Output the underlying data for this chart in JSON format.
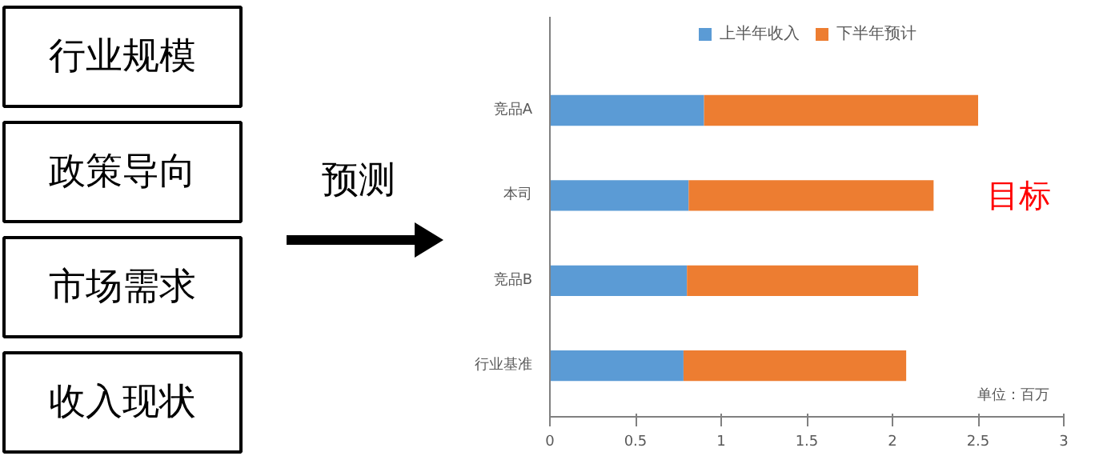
{
  "chart_data": [
    {
      "type": "other",
      "annotations": [
        "行业规模",
        "政策导向",
        "市场需求",
        "收入现状",
        "预测"
      ]
    },
    {
      "type": "bar",
      "orientation": "horizontal",
      "stacked": true,
      "categories": [
        "竞品A",
        "本司",
        "竞品B",
        "行业基准"
      ],
      "series": [
        {
          "name": "上半年收入",
          "color": "#5b9bd5",
          "values": [
            0.9,
            0.81,
            0.8,
            0.78
          ]
        },
        {
          "name": "下半年预计",
          "color": "#ed7d31",
          "values": [
            1.6,
            1.43,
            1.35,
            1.3
          ]
        }
      ],
      "xlim": [
        0,
        3
      ],
      "xticks": [
        0,
        0.5,
        1,
        1.5,
        2,
        2.5,
        3
      ],
      "grid": false,
      "legend": "top",
      "annotations": [
        "目标",
        "单位：百万"
      ]
    }
  ]
}
